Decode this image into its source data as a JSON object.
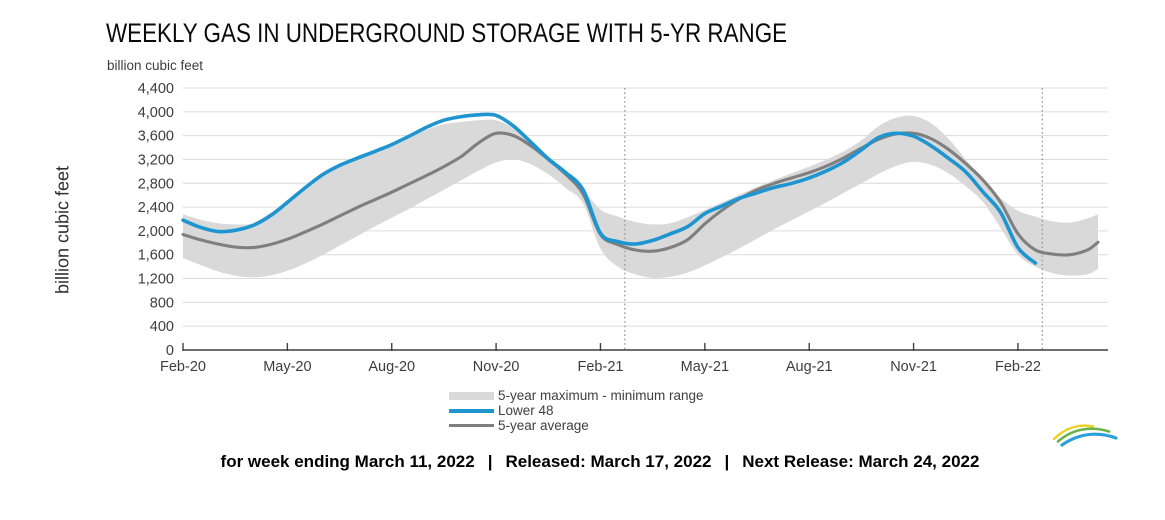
{
  "chart_data": {
    "type": "line",
    "title": "WEEKLY GAS IN UNDERGROUND STORAGE WITH 5-YR RANGE",
    "units_label": "billion cubic feet",
    "ylabel": "billion cubic feet",
    "xlabel": "",
    "ylim": [
      0,
      4400
    ],
    "ytick_step": 400,
    "xlim_months": [
      0,
      26.6
    ],
    "grid": true,
    "legend_position": "bottom",
    "colors": {
      "band": "#d9d9d9",
      "lower48": "#1e95d0",
      "average": "#7f7f7f",
      "grid": "#dcdcdc",
      "axis": "#3f3f3f",
      "tick_text": "#3d3d3d",
      "ref_line": "#9e9e9e"
    },
    "xticks": {
      "months": [
        0,
        3,
        6,
        9,
        12,
        15,
        18,
        21,
        24
      ],
      "labels": [
        "Feb-20",
        "May-20",
        "Aug-20",
        "Nov-20",
        "Feb-21",
        "May-21",
        "Aug-21",
        "Nov-21",
        "Feb-22"
      ]
    },
    "ref_line_months": [
      12.7,
      24.7
    ],
    "band": {
      "name": "5-year maximum - minimum range",
      "x": [
        0,
        0.5,
        1,
        1.5,
        2,
        2.5,
        3,
        3.5,
        4,
        4.5,
        5,
        5.5,
        6,
        6.5,
        7,
        7.5,
        8,
        8.5,
        9,
        9.5,
        10,
        10.5,
        11,
        11.5,
        12,
        12.5,
        13,
        13.5,
        14,
        14.5,
        15,
        15.5,
        16,
        16.5,
        17,
        17.5,
        18,
        18.5,
        19,
        19.5,
        20,
        20.5,
        21,
        21.5,
        22,
        22.5,
        23,
        23.5,
        24,
        24.5,
        25,
        25.5,
        26,
        26.3
      ],
      "max": [
        2280,
        2190,
        2130,
        2110,
        2130,
        2300,
        2500,
        2730,
        2950,
        3110,
        3230,
        3340,
        3450,
        3580,
        3700,
        3790,
        3830,
        3860,
        3860,
        3720,
        3470,
        3210,
        2990,
        2700,
        2360,
        2240,
        2150,
        2110,
        2130,
        2230,
        2350,
        2480,
        2610,
        2740,
        2860,
        2970,
        3080,
        3200,
        3340,
        3520,
        3760,
        3900,
        3930,
        3810,
        3550,
        3200,
        2850,
        2550,
        2340,
        2240,
        2160,
        2140,
        2210,
        2280
      ],
      "min": [
        1540,
        1430,
        1320,
        1250,
        1220,
        1250,
        1330,
        1450,
        1590,
        1750,
        1910,
        2070,
        2220,
        2370,
        2530,
        2690,
        2850,
        3010,
        3150,
        3200,
        3120,
        2950,
        2720,
        2460,
        1700,
        1400,
        1270,
        1210,
        1230,
        1300,
        1420,
        1560,
        1710,
        1870,
        2030,
        2180,
        2330,
        2480,
        2640,
        2800,
        2960,
        3090,
        3160,
        3110,
        2970,
        2750,
        2480,
        2050,
        1600,
        1400,
        1290,
        1250,
        1270,
        1360
      ]
    },
    "series": [
      {
        "name": "Lower 48",
        "color": "#1e95d0",
        "width": 3.6,
        "x": [
          0,
          0.5,
          1,
          1.5,
          2,
          2.5,
          3,
          3.5,
          4,
          4.5,
          5,
          5.5,
          6,
          6.5,
          7,
          7.5,
          8,
          8.5,
          9,
          9.5,
          10,
          10.5,
          11,
          11.5,
          12,
          12.5,
          13,
          13.5,
          14,
          14.5,
          15,
          15.5,
          16,
          16.5,
          17,
          17.5,
          18,
          18.5,
          19,
          19.5,
          20,
          20.5,
          21,
          21.5,
          22,
          22.5,
          23,
          23.5,
          24,
          24.5
        ],
        "y": [
          2180,
          2060,
          1990,
          2010,
          2090,
          2250,
          2480,
          2720,
          2940,
          3100,
          3220,
          3330,
          3450,
          3590,
          3740,
          3860,
          3920,
          3950,
          3940,
          3760,
          3490,
          3210,
          2980,
          2690,
          1960,
          1820,
          1780,
          1840,
          1950,
          2070,
          2290,
          2420,
          2550,
          2640,
          2730,
          2800,
          2890,
          3010,
          3160,
          3360,
          3570,
          3640,
          3590,
          3430,
          3220,
          2990,
          2650,
          2310,
          1720,
          1460
        ]
      },
      {
        "name": "5-year average",
        "color": "#7f7f7f",
        "width": 3.1,
        "x": [
          0,
          0.5,
          1,
          1.5,
          2,
          2.5,
          3,
          3.5,
          4,
          4.5,
          5,
          5.5,
          6,
          6.5,
          7,
          7.5,
          8,
          8.5,
          9,
          9.5,
          10,
          10.5,
          11,
          11.5,
          12,
          12.5,
          13,
          13.5,
          14,
          14.5,
          15,
          15.5,
          16,
          16.5,
          17,
          17.5,
          18,
          18.5,
          19,
          19.5,
          20,
          20.5,
          21,
          21.5,
          22,
          22.5,
          23,
          23.5,
          24,
          24.5,
          25,
          25.5,
          26,
          26.3
        ],
        "y": [
          1940,
          1850,
          1780,
          1730,
          1720,
          1770,
          1860,
          1980,
          2110,
          2250,
          2390,
          2520,
          2650,
          2790,
          2930,
          3080,
          3250,
          3480,
          3640,
          3600,
          3430,
          3200,
          2950,
          2620,
          1940,
          1770,
          1680,
          1660,
          1720,
          1850,
          2120,
          2350,
          2540,
          2690,
          2800,
          2890,
          2980,
          3090,
          3230,
          3390,
          3540,
          3630,
          3640,
          3550,
          3370,
          3130,
          2850,
          2480,
          1950,
          1680,
          1610,
          1600,
          1680,
          1810
        ]
      }
    ]
  },
  "legend": [
    {
      "label": "5-year maximum - minimum range"
    },
    {
      "label": "Lower 48"
    },
    {
      "label": "5-year average"
    }
  ],
  "footer": {
    "week_ending": "for week ending March 11, 2022",
    "released": "Released: March 17, 2022",
    "next_release": "Next Release: March 24, 2022",
    "separator": "|"
  },
  "logo": {
    "name": "eia-logo-swoosh"
  }
}
